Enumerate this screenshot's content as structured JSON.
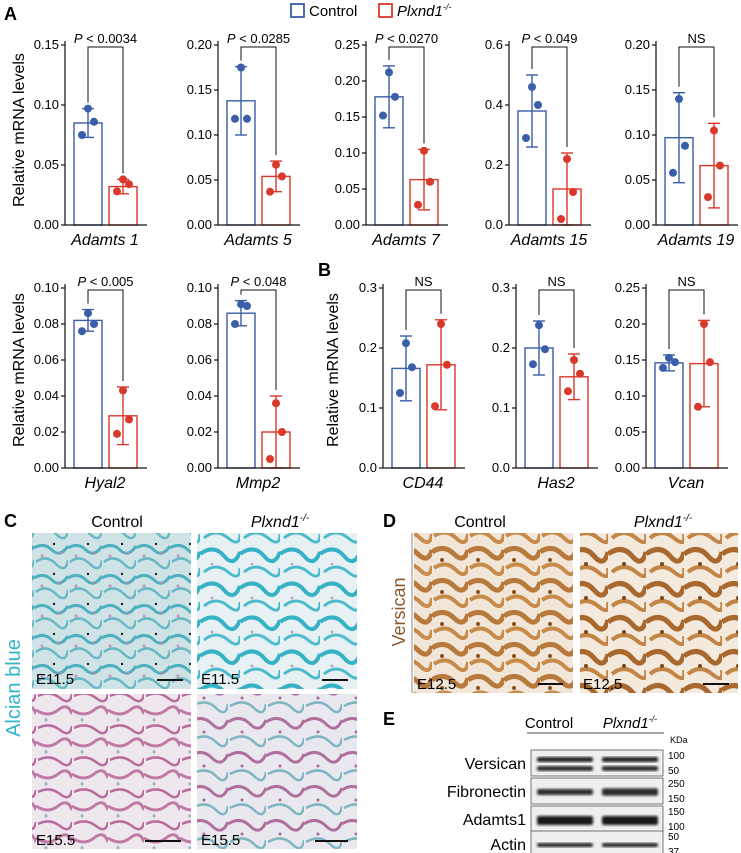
{
  "legend": {
    "items": [
      {
        "label": "Control",
        "color": "#3a5ea8"
      },
      {
        "label": "Plxnd1",
        "sup": "-/-",
        "italic": true,
        "color": "#d9392b"
      }
    ]
  },
  "colors": {
    "control": "#3a5ea8",
    "mutant": "#d9392b"
  },
  "panel_labels": {
    "A": "A",
    "B": "B",
    "C": "C",
    "D": "D",
    "E": "E"
  },
  "chart_data": [
    {
      "type": "bar",
      "gene": "Adamts 1",
      "ylabel": "Relative mRNA levels",
      "ylim": [
        0,
        0.15
      ],
      "ticks": [
        "0.00",
        "0.05",
        "0.10",
        "0.15"
      ],
      "sig": "P < 0.0034",
      "series": [
        {
          "name": "Control",
          "mean": 0.085,
          "sd": 0.012,
          "points": [
            0.097,
            0.086,
            0.075
          ]
        },
        {
          "name": "Plxnd1-/-",
          "mean": 0.032,
          "sd": 0.006,
          "points": [
            0.038,
            0.034,
            0.028
          ]
        }
      ]
    },
    {
      "type": "bar",
      "gene": "Adamts 5",
      "ylabel": "",
      "ylim": [
        0,
        0.2
      ],
      "ticks": [
        "0.00",
        "0.05",
        "0.10",
        "0.15",
        "0.20"
      ],
      "sig": "P < 0.0285",
      "series": [
        {
          "name": "Control",
          "mean": 0.138,
          "sd": 0.038,
          "points": [
            0.175,
            0.118,
            0.118
          ]
        },
        {
          "name": "Plxnd1-/-",
          "mean": 0.054,
          "sd": 0.017,
          "points": [
            0.067,
            0.054,
            0.037
          ]
        }
      ]
    },
    {
      "type": "bar",
      "gene": "Adamts 7",
      "ylabel": "",
      "ylim": [
        0,
        0.25
      ],
      "ticks": [
        "0.00",
        "0.05",
        "0.10",
        "0.15",
        "0.20",
        "0.25"
      ],
      "sig": "P < 0.0270",
      "series": [
        {
          "name": "Control",
          "mean": 0.178,
          "sd": 0.043,
          "points": [
            0.212,
            0.178,
            0.152
          ]
        },
        {
          "name": "Plxnd1-/-",
          "mean": 0.063,
          "sd": 0.042,
          "points": [
            0.103,
            0.06,
            0.028
          ]
        }
      ]
    },
    {
      "type": "bar",
      "gene": "Adamts 15",
      "ylabel": "",
      "ylim": [
        0,
        0.6
      ],
      "ticks": [
        "0.0",
        "0.2",
        "0.4",
        "0.6"
      ],
      "sig": "P < 0.049",
      "series": [
        {
          "name": "Control",
          "mean": 0.38,
          "sd": 0.12,
          "points": [
            0.46,
            0.4,
            0.29
          ]
        },
        {
          "name": "Plxnd1-/-",
          "mean": 0.12,
          "sd": 0.12,
          "points": [
            0.22,
            0.11,
            0.02
          ]
        }
      ]
    },
    {
      "type": "bar",
      "gene": "Adamts 19",
      "ylabel": "",
      "ylim": [
        0,
        0.2
      ],
      "ticks": [
        "0.00",
        "0.05",
        "0.10",
        "0.15",
        "0.20"
      ],
      "sig": "NS",
      "series": [
        {
          "name": "Control",
          "mean": 0.097,
          "sd": 0.05,
          "points": [
            0.14,
            0.088,
            0.058
          ]
        },
        {
          "name": "Plxnd1-/-",
          "mean": 0.066,
          "sd": 0.047,
          "points": [
            0.105,
            0.066,
            0.031
          ]
        }
      ]
    },
    {
      "type": "bar",
      "gene": "Hyal2",
      "ylabel": "Relative mRNA levels",
      "ylim": [
        0,
        0.1
      ],
      "ticks": [
        "0.00",
        "0.02",
        "0.04",
        "0.06",
        "0.08",
        "0.10"
      ],
      "sig": "P < 0.005",
      "series": [
        {
          "name": "Control",
          "mean": 0.082,
          "sd": 0.006,
          "points": [
            0.086,
            0.08,
            0.076
          ]
        },
        {
          "name": "Plxnd1-/-",
          "mean": 0.029,
          "sd": 0.016,
          "points": [
            0.043,
            0.027,
            0.019
          ]
        }
      ]
    },
    {
      "type": "bar",
      "gene": "Mmp2",
      "ylabel": "",
      "ylim": [
        0,
        0.1
      ],
      "ticks": [
        "0.00",
        "0.02",
        "0.04",
        "0.06",
        "0.08",
        "0.10"
      ],
      "sig": "P < 0.048",
      "series": [
        {
          "name": "Control",
          "mean": 0.086,
          "sd": 0.007,
          "points": [
            0.091,
            0.09,
            0.08
          ]
        },
        {
          "name": "Plxnd1-/-",
          "mean": 0.02,
          "sd": 0.02,
          "points": [
            0.036,
            0.02,
            0.005
          ]
        }
      ]
    },
    {
      "type": "bar",
      "gene": "CD44",
      "ylabel": "Relative mRNA levels",
      "ylim": [
        0,
        0.3
      ],
      "ticks": [
        "0.0",
        "0.1",
        "0.2",
        "0.3"
      ],
      "sig": "NS",
      "series": [
        {
          "name": "Control",
          "mean": 0.166,
          "sd": 0.054,
          "points": [
            0.208,
            0.168,
            0.125
          ]
        },
        {
          "name": "Plxnd1-/-",
          "mean": 0.172,
          "sd": 0.075,
          "points": [
            0.24,
            0.172,
            0.103
          ]
        }
      ]
    },
    {
      "type": "bar",
      "gene": "Has2",
      "ylabel": "",
      "ylim": [
        0,
        0.3
      ],
      "ticks": [
        "0.0",
        "0.1",
        "0.2",
        "0.3"
      ],
      "sig": "NS",
      "series": [
        {
          "name": "Control",
          "mean": 0.2,
          "sd": 0.045,
          "points": [
            0.238,
            0.198,
            0.173
          ]
        },
        {
          "name": "Plxnd1-/-",
          "mean": 0.152,
          "sd": 0.038,
          "points": [
            0.18,
            0.157,
            0.128
          ]
        }
      ]
    },
    {
      "type": "bar",
      "gene": "Vcan",
      "ylabel": "",
      "ylim": [
        0,
        0.25
      ],
      "ticks": [
        "0.00",
        "0.05",
        "0.10",
        "0.15",
        "0.20",
        "0.25"
      ],
      "sig": "NS",
      "series": [
        {
          "name": "Control",
          "mean": 0.146,
          "sd": 0.011,
          "points": [
            0.153,
            0.147,
            0.139
          ]
        },
        {
          "name": "Plxnd1-/-",
          "mean": 0.145,
          "sd": 0.06,
          "points": [
            0.2,
            0.147,
            0.085
          ]
        }
      ]
    }
  ],
  "panel_c": {
    "col_labels": [
      "Control",
      "Plxnd1"
    ],
    "col_sup": "-/-",
    "row_label": "Alcian blue",
    "stages": [
      "E11.5",
      "E11.5",
      "E15.5",
      "E15.5"
    ],
    "label_color": "#33b5c9"
  },
  "panel_d": {
    "col_labels": [
      "Control",
      "Plxnd1"
    ],
    "col_sup": "-/-",
    "row_label": "Versican",
    "stages": [
      "E12.5",
      "E12.5"
    ],
    "label_color": "#8a5a2b"
  },
  "panel_e": {
    "col_labels": [
      "Control",
      "Plxnd1"
    ],
    "col_sup": "-/-",
    "unit": "KDa",
    "rows": [
      {
        "label": "Versican",
        "markers": [
          "100",
          "50"
        ]
      },
      {
        "label": "Fibronectin",
        "markers": [
          "250",
          "150"
        ]
      },
      {
        "label": "Adamts1",
        "markers": [
          "150",
          "100"
        ]
      },
      {
        "label": "Actin",
        "markers": [
          "50",
          "37"
        ]
      }
    ]
  }
}
